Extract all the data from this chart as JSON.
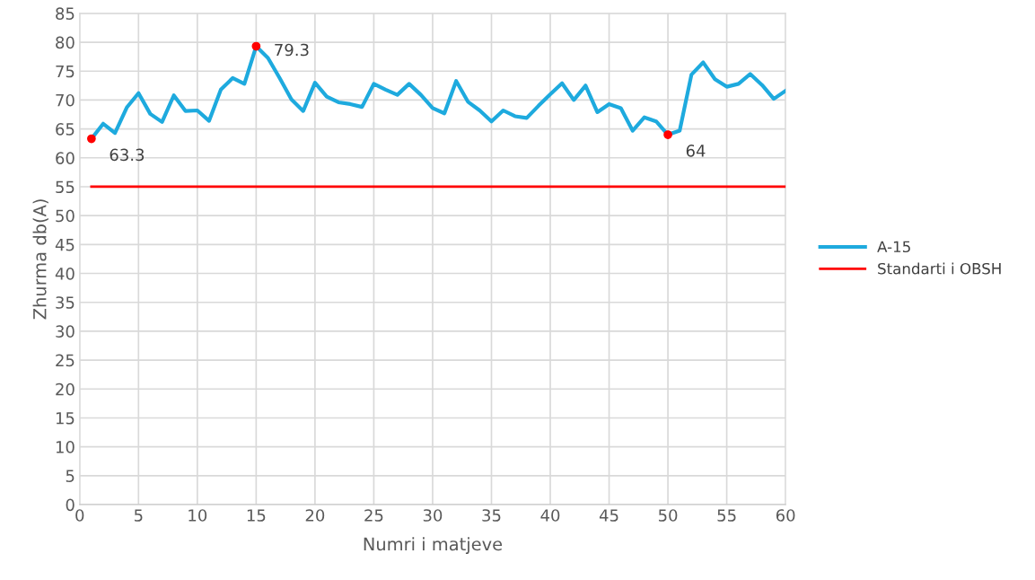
{
  "chart_data": {
    "type": "line",
    "xlabel": "Numri i matjeve",
    "ylabel": "Zhurma db(A)",
    "xlim": [
      0,
      60
    ],
    "xticks": [
      0,
      5,
      10,
      15,
      20,
      25,
      30,
      35,
      40,
      45,
      50,
      55,
      60
    ],
    "ylim": [
      0,
      85
    ],
    "yticks": [
      0,
      5,
      10,
      15,
      20,
      25,
      30,
      35,
      40,
      45,
      50,
      55,
      60,
      65,
      70,
      75,
      80,
      85
    ],
    "grid": true,
    "legend": "right",
    "marker": "none",
    "line_style": "solid",
    "series": [
      {
        "name": "A-15",
        "color": "#1eaade",
        "x": [
          1,
          2,
          3,
          4,
          5,
          6,
          7,
          8,
          9,
          10,
          11,
          12,
          13,
          14,
          15,
          16,
          17,
          18,
          19,
          20,
          21,
          22,
          23,
          24,
          25,
          26,
          27,
          28,
          29,
          30,
          31,
          32,
          33,
          34,
          35,
          36,
          37,
          38,
          39,
          40,
          41,
          42,
          43,
          44,
          45,
          46,
          47,
          48,
          49,
          50,
          51,
          52,
          53,
          54,
          55,
          56,
          57,
          58,
          59,
          60
        ],
        "values": [
          63.3,
          65.9,
          64.3,
          68.7,
          71.2,
          67.6,
          66.2,
          70.8,
          68.1,
          68.2,
          66.4,
          71.8,
          73.8,
          72.8,
          79.3,
          77.3,
          73.8,
          70.1,
          68.1,
          73.0,
          70.6,
          69.6,
          69.3,
          68.8,
          72.8,
          71.8,
          70.9,
          72.8,
          70.9,
          68.6,
          67.7,
          73.3,
          69.7,
          68.2,
          66.3,
          68.2,
          67.2,
          66.9,
          69.0,
          71.0,
          72.9,
          70.0,
          72.5,
          67.9,
          69.3,
          68.6,
          64.7,
          67.0,
          66.3,
          64,
          64.7,
          74.4,
          76.5,
          73.6,
          72.3,
          72.8,
          74.5,
          72.6,
          70.2,
          71.6
        ]
      },
      {
        "name": "Standarti i OBSH",
        "color": "#ff0000",
        "x": [
          1,
          60
        ],
        "values": [
          55,
          55
        ]
      },
      {
        "type": "scatter",
        "color": "#ff0000",
        "marker": "circle",
        "x": [
          1,
          15,
          50
        ],
        "values": [
          63.3,
          79.3,
          64
        ],
        "value_labels": [
          "63.3",
          "79.3",
          "64"
        ]
      }
    ]
  }
}
